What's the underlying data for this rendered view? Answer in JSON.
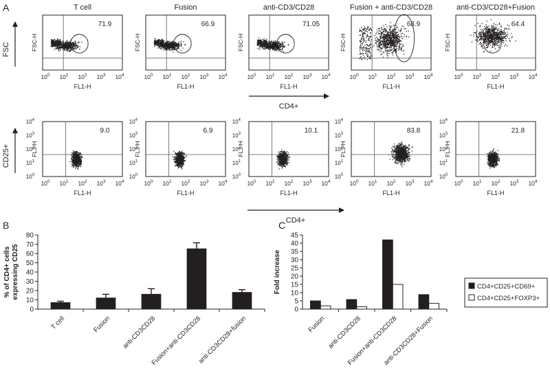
{
  "panel_labels": [
    "A",
    "B",
    "C"
  ],
  "flow": {
    "x_axis_label": "FL1-H",
    "x_ticks": [
      "10",
      "10",
      "10",
      "10",
      "10"
    ],
    "tick_exponents": [
      "0",
      "1",
      "2",
      "3",
      "4"
    ],
    "y_ticks": [
      "10",
      "10",
      "10",
      "10",
      "10"
    ],
    "row_labels": [
      "FSC",
      "CD25+"
    ],
    "row_y_labels": [
      "FSC-H",
      "FL3-H"
    ],
    "arrow_labels": [
      "CD4+",
      "CD4+"
    ],
    "rows": [
      [
        {
          "title": "T cell",
          "value": "71.9",
          "tone": "low"
        },
        {
          "title": "Fusion",
          "value": "66.9",
          "tone": "low"
        },
        {
          "title": "anti-CD3/CD28",
          "value": "71.05",
          "tone": "low"
        },
        {
          "title": "Fusion + anti-CD3/CD28",
          "value": "68.9",
          "tone": "high"
        },
        {
          "title": "anti-CD3/CD28+Fusion",
          "value": "64.4",
          "tone": "mid"
        }
      ],
      [
        {
          "value": "9.0",
          "tone": "low"
        },
        {
          "value": "6.9",
          "tone": "low"
        },
        {
          "value": "10.1",
          "tone": "low"
        },
        {
          "value": "83.8",
          "tone": "high"
        },
        {
          "value": "21.8",
          "tone": "mid"
        }
      ]
    ]
  },
  "chart_data": [
    {
      "type": "bar",
      "panel": "B",
      "ylabel": "% of CD4+ cells expressing CD25",
      "ylim": [
        0,
        80
      ],
      "yticks": [
        "0",
        "10",
        "20",
        "30",
        "40",
        "50",
        "60",
        "70",
        "80"
      ],
      "categories": [
        "T cell",
        "Fusion",
        "anti-CD3CD28",
        "Fusion+anti-CD3CD28",
        "anti-CD3CD28+fusion"
      ],
      "values": [
        7,
        12,
        16,
        65,
        18
      ],
      "errors": [
        1.5,
        4,
        6,
        6.5,
        3
      ],
      "color": "#231f20"
    },
    {
      "type": "bar",
      "panel": "C",
      "ylabel": "Fold increase",
      "ylim": [
        0,
        45
      ],
      "yticks": [
        "0",
        "5",
        "10",
        "15",
        "20",
        "25",
        "30",
        "35",
        "40",
        "45"
      ],
      "categories": [
        "Fusion",
        "anti-CD3CD28",
        "Fusion+anti-CD3CD28",
        "anti-CD3CD28+Fusion"
      ],
      "series": [
        {
          "name": "CD4+CD25+CD69+",
          "values": [
            5,
            5.8,
            42,
            8.8
          ],
          "color": "#231f20"
        },
        {
          "name": "CD4+CD25+FOXP3+",
          "values": [
            2,
            1.5,
            15,
            3.5
          ],
          "color": "#ffffff"
        }
      ],
      "legend_position": "right"
    }
  ]
}
